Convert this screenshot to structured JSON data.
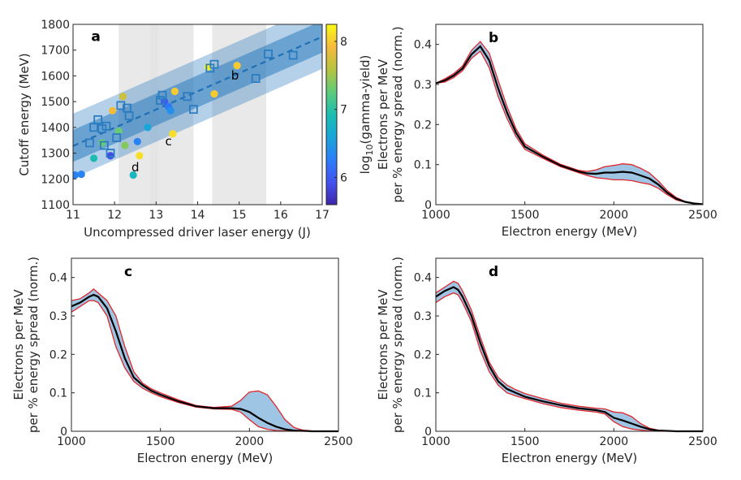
{
  "chart_data": [
    {
      "panel": "a",
      "type": "scatter",
      "xlabel": "Uncompressed driver laser energy (J)",
      "ylabel": "Cutoff energy (MeV)",
      "xlim": [
        11,
        17
      ],
      "ylim": [
        1100,
        1800
      ],
      "xticks": [
        11,
        12,
        13,
        14,
        15,
        16,
        17
      ],
      "yticks": [
        1100,
        1200,
        1300,
        1400,
        1500,
        1600,
        1700,
        1800
      ],
      "colorbar": {
        "label_prefix": "log",
        "label_sub": "10",
        "label_suffix": "(gamma-yield)",
        "range": [
          5.6,
          8.25
        ],
        "ticks": [
          6,
          7,
          8
        ],
        "colors": [
          "#3e26a8",
          "#4352f0",
          "#2c7ff9",
          "#1aa6d9",
          "#1bbfb0",
          "#5ecb7a",
          "#b6c43e",
          "#f7ba3c",
          "#f9fb15"
        ]
      },
      "fit": {
        "line": [
          [
            11,
            1328
          ],
          [
            17,
            1752
          ]
        ],
        "inner_band": 62,
        "outer_band": 125,
        "color": "#2b7cc0"
      },
      "grey_bands": [
        [
          12.1,
          13.9
        ],
        [
          12.85,
          13.05
        ],
        [
          14.35,
          15.65
        ]
      ],
      "squares": [
        [
          11.4,
          1340
        ],
        [
          11.5,
          1400
        ],
        [
          11.6,
          1430
        ],
        [
          11.7,
          1395
        ],
        [
          11.75,
          1330
        ],
        [
          11.8,
          1405
        ],
        [
          11.9,
          1300
        ],
        [
          12.05,
          1360
        ],
        [
          12.15,
          1485
        ],
        [
          12.3,
          1475
        ],
        [
          12.35,
          1445
        ],
        [
          13.1,
          1505
        ],
        [
          13.15,
          1525
        ],
        [
          13.75,
          1520
        ],
        [
          13.9,
          1470
        ],
        [
          14.3,
          1630
        ],
        [
          14.4,
          1645
        ],
        [
          15.4,
          1590
        ],
        [
          15.7,
          1685
        ],
        [
          16.3,
          1680
        ]
      ],
      "circles": [
        [
          11.05,
          1215,
          6.3
        ],
        [
          11.2,
          1218,
          6.3
        ],
        [
          11.5,
          1280,
          6.9
        ],
        [
          11.7,
          1340,
          7.3
        ],
        [
          11.9,
          1290,
          5.9
        ],
        [
          11.95,
          1465,
          7.9
        ],
        [
          12.1,
          1385,
          7.3
        ],
        [
          12.2,
          1520,
          7.7
        ],
        [
          12.25,
          1330,
          7.4
        ],
        [
          12.45,
          1215,
          6.8
        ],
        [
          12.55,
          1345,
          6.3
        ],
        [
          12.6,
          1290,
          8.1
        ],
        [
          12.8,
          1400,
          6.6
        ],
        [
          13.2,
          1500,
          6.0
        ],
        [
          13.3,
          1480,
          6.2
        ],
        [
          13.35,
          1465,
          6.4
        ],
        [
          13.4,
          1375,
          8.1
        ],
        [
          13.45,
          1540,
          8.0
        ],
        [
          14.25,
          1635,
          8.2
        ],
        [
          14.4,
          1530,
          8.0
        ],
        [
          14.95,
          1640,
          8.0
        ]
      ],
      "labels": [
        {
          "text": "a",
          "x": 11.55,
          "y": 1735
        },
        {
          "text": "b",
          "x": 14.9,
          "y": 1585
        },
        {
          "text": "c",
          "x": 13.3,
          "y": 1330
        },
        {
          "text": "d",
          "x": 12.5,
          "y": 1230
        }
      ]
    },
    {
      "panel": "b",
      "type": "line",
      "xlabel": "Electron energy (MeV)",
      "ylabel_line1": "Electrons per MeV",
      "ylabel_line2": "per % energy spread (norm.)",
      "xlim": [
        1000,
        2500
      ],
      "ylim": [
        0,
        0.45
      ],
      "xticks": [
        1000,
        1500,
        2000,
        2500
      ],
      "yticks": [
        0,
        0.1,
        0.2,
        0.3,
        0.4
      ],
      "series": [
        {
          "name": "mean",
          "x": [
            1000,
            1050,
            1100,
            1150,
            1200,
            1250,
            1300,
            1350,
            1400,
            1450,
            1500,
            1600,
            1700,
            1800,
            1850,
            1900,
            1950,
            2000,
            2050,
            2100,
            2150,
            2200,
            2250,
            2300,
            2350,
            2400,
            2450,
            2500
          ],
          "y": [
            0.303,
            0.31,
            0.322,
            0.34,
            0.375,
            0.395,
            0.36,
            0.29,
            0.23,
            0.18,
            0.145,
            0.12,
            0.098,
            0.083,
            0.078,
            0.077,
            0.08,
            0.08,
            0.082,
            0.08,
            0.073,
            0.065,
            0.05,
            0.03,
            0.015,
            0.007,
            0.003,
            0.001
          ]
        }
      ],
      "spread": [
        0,
        0.004,
        0.005,
        0.006,
        0.01,
        0.012,
        0.018,
        0.02,
        0.015,
        0.01,
        0.007,
        0.004,
        0.003,
        0.003,
        0.005,
        0.01,
        0.015,
        0.018,
        0.02,
        0.02,
        0.018,
        0.014,
        0.009,
        0.005,
        0.003,
        0.001,
        0,
        0
      ],
      "label": "b"
    },
    {
      "panel": "c",
      "type": "line",
      "xlabel": "Electron energy (MeV)",
      "ylabel_line1": "Electrons per MeV",
      "ylabel_line2": "per % energy spread (norm.)",
      "xlim": [
        1000,
        2500
      ],
      "ylim": [
        0,
        0.45
      ],
      "xticks": [
        1000,
        1500,
        2000,
        2500
      ],
      "yticks": [
        0,
        0.1,
        0.2,
        0.3,
        0.4
      ],
      "series": [
        {
          "name": "mean",
          "x": [
            1000,
            1050,
            1100,
            1125,
            1150,
            1200,
            1250,
            1300,
            1350,
            1400,
            1450,
            1500,
            1600,
            1700,
            1800,
            1900,
            1950,
            2000,
            2050,
            2100,
            2150,
            2200,
            2250,
            2300,
            2350,
            2400,
            2450,
            2500
          ],
          "y": [
            0.325,
            0.335,
            0.35,
            0.355,
            0.35,
            0.32,
            0.26,
            0.19,
            0.14,
            0.12,
            0.105,
            0.095,
            0.078,
            0.065,
            0.06,
            0.06,
            0.058,
            0.05,
            0.035,
            0.022,
            0.012,
            0.005,
            0.002,
            0.001,
            0,
            0,
            0,
            0
          ],
          "upper": [
            0.34,
            0.345,
            0.36,
            0.37,
            0.36,
            0.34,
            0.3,
            0.22,
            0.155,
            0.125,
            0.11,
            0.1,
            0.082,
            0.067,
            0.062,
            0.065,
            0.08,
            0.102,
            0.105,
            0.095,
            0.065,
            0.03,
            0.01,
            0.003,
            0.001,
            0,
            0,
            0
          ],
          "lower": [
            0.31,
            0.325,
            0.34,
            0.34,
            0.335,
            0.3,
            0.22,
            0.165,
            0.13,
            0.112,
            0.1,
            0.09,
            0.075,
            0.063,
            0.058,
            0.057,
            0.05,
            0.03,
            0.012,
            0.005,
            0.002,
            0.001,
            0,
            0,
            0,
            0,
            0,
            0
          ]
        }
      ],
      "label": "c"
    },
    {
      "panel": "d",
      "type": "line",
      "xlabel": "Electron energy (MeV)",
      "ylabel_line1": "Electrons per MeV",
      "ylabel_line2": "per % energy spread (norm.)",
      "xlim": [
        1000,
        2500
      ],
      "ylim": [
        0,
        0.45
      ],
      "xticks": [
        1000,
        1500,
        2000,
        2500
      ],
      "yticks": [
        0,
        0.1,
        0.2,
        0.3,
        0.4
      ],
      "series": [
        {
          "name": "mean",
          "x": [
            1000,
            1050,
            1100,
            1125,
            1150,
            1200,
            1250,
            1300,
            1350,
            1400,
            1450,
            1500,
            1600,
            1700,
            1800,
            1900,
            1950,
            2000,
            2050,
            2100,
            2150,
            2200,
            2250,
            2300,
            2350,
            2400,
            2450,
            2500
          ],
          "y": [
            0.35,
            0.365,
            0.375,
            0.368,
            0.35,
            0.3,
            0.23,
            0.17,
            0.13,
            0.11,
            0.1,
            0.09,
            0.078,
            0.068,
            0.06,
            0.055,
            0.05,
            0.035,
            0.028,
            0.02,
            0.012,
            0.005,
            0.002,
            0.001,
            0,
            0,
            0,
            0
          ],
          "upper": [
            0.36,
            0.375,
            0.39,
            0.385,
            0.365,
            0.315,
            0.245,
            0.18,
            0.14,
            0.12,
            0.108,
            0.098,
            0.085,
            0.073,
            0.065,
            0.06,
            0.058,
            0.05,
            0.048,
            0.038,
            0.02,
            0.008,
            0.003,
            0.001,
            0,
            0,
            0,
            0
          ],
          "lower": [
            0.335,
            0.35,
            0.36,
            0.355,
            0.335,
            0.285,
            0.21,
            0.155,
            0.12,
            0.1,
            0.092,
            0.085,
            0.072,
            0.062,
            0.055,
            0.05,
            0.045,
            0.025,
            0.012,
            0.006,
            0.003,
            0.001,
            0,
            0,
            0,
            0,
            0,
            0
          ]
        }
      ],
      "label": "d"
    }
  ]
}
